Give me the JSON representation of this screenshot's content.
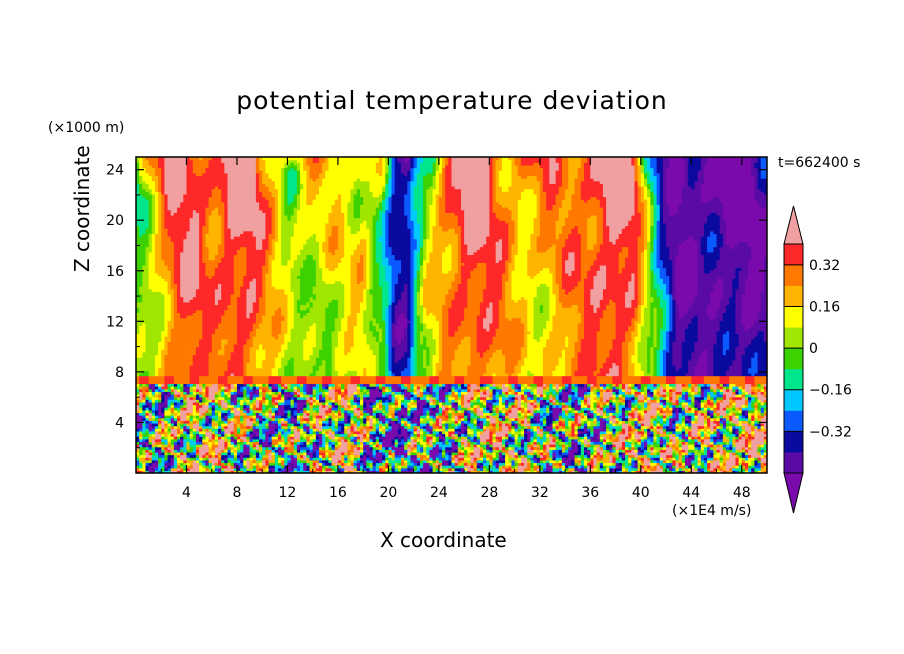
{
  "chart_data": {
    "type": "heatmap",
    "title": "potential temperature deviation",
    "xlabel": "X coordinate",
    "ylabel": "Z coordinate",
    "x_unit": "(×1E4 m/s)",
    "y_unit": "(×1000 m)",
    "time_label": "t=662400 s",
    "xlim": [
      0,
      50
    ],
    "ylim": [
      0,
      25
    ],
    "x_ticks": [
      4,
      8,
      12,
      16,
      20,
      24,
      28,
      32,
      36,
      40,
      44,
      48
    ],
    "y_ticks": [
      4,
      8,
      12,
      16,
      20,
      24
    ],
    "colorbar": {
      "levels": [
        -0.48,
        -0.4,
        -0.32,
        -0.24,
        -0.16,
        -0.08,
        0,
        0.08,
        0.16,
        0.24,
        0.32,
        0.4
      ],
      "tick_labels": [
        "0.32",
        "0.16",
        "0",
        "−0.16",
        "−0.32"
      ],
      "tick_values": [
        0.32,
        0.16,
        0,
        -0.16,
        -0.32
      ],
      "colors": [
        "#7a0aab",
        "#5a0aa5",
        "#0a0aa0",
        "#0a5aff",
        "#00c8ff",
        "#00e68c",
        "#3cd200",
        "#a0e600",
        "#ffff00",
        "#ffb400",
        "#ff7800",
        "#ff2828",
        "#f0a0a0"
      ]
    },
    "upper_layer_profile": {
      "x": [
        0,
        1.5,
        3,
        4.5,
        6,
        7.5,
        9,
        10.5,
        12,
        13.5,
        15,
        16.5,
        18,
        19.5,
        20.5,
        21.5,
        23,
        24.5,
        26,
        27.5,
        29,
        30.5,
        32,
        33.5,
        35,
        36.5,
        38,
        39.5,
        40.5,
        41.5,
        43,
        44.5,
        46,
        47.5,
        49,
        50
      ],
      "value": [
        0.02,
        0.14,
        0.3,
        0.38,
        0.33,
        0.41,
        0.36,
        0.22,
        0.12,
        0.08,
        0.05,
        0.1,
        0.2,
        -0.05,
        -0.4,
        -0.45,
        0.1,
        0.3,
        0.36,
        0.34,
        0.3,
        0.22,
        0.16,
        0.2,
        0.3,
        0.4,
        0.42,
        0.3,
        0.05,
        -0.2,
        -0.46,
        -0.48,
        -0.48,
        -0.46,
        -0.46,
        -0.44
      ]
    },
    "notes": "Upper layer (z>7) mostly smooth vertical bands; lower layer (z<7) turbulent mixture of all levels."
  }
}
